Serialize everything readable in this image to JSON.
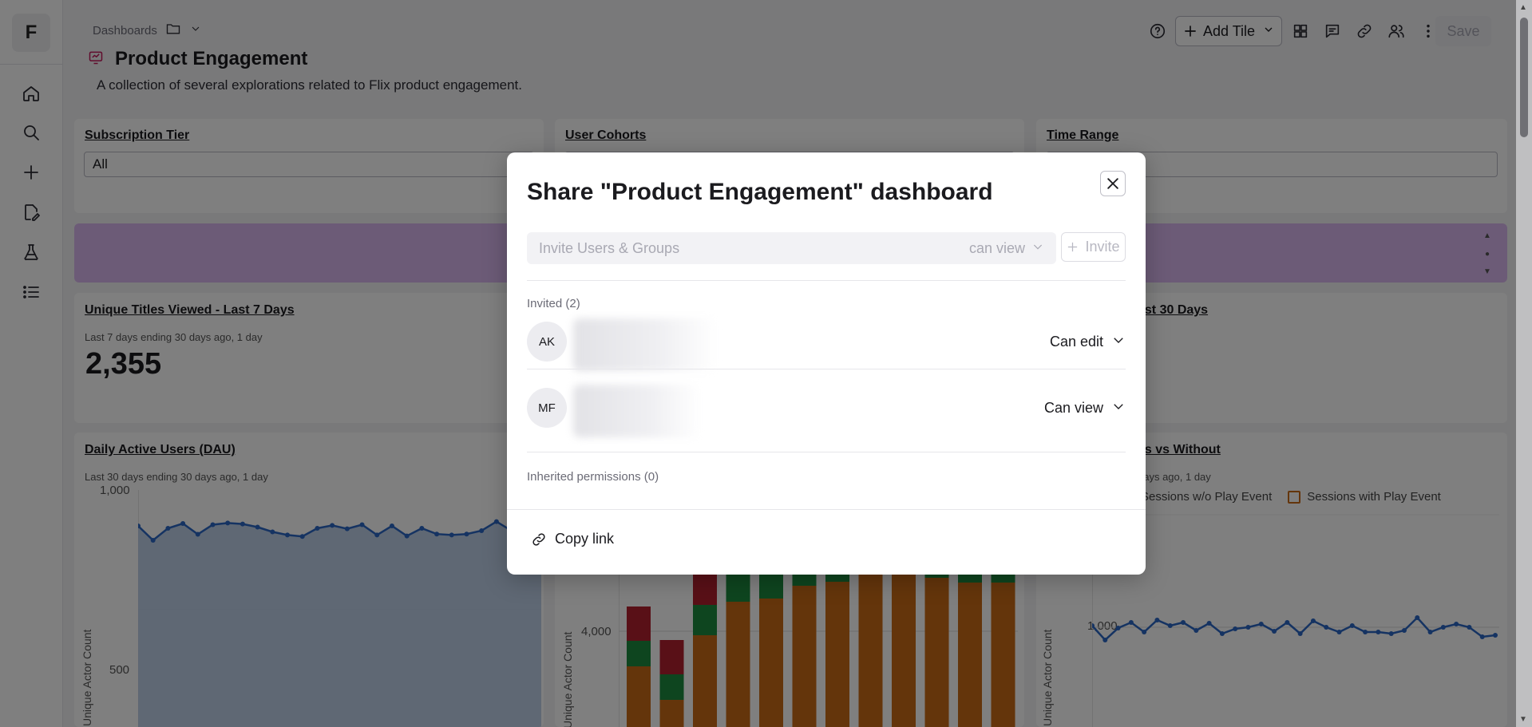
{
  "sidebar": {
    "logo": "F",
    "icons": [
      "home-icon",
      "search-icon",
      "plus-icon",
      "edit-document-icon",
      "flask-icon",
      "list-icon"
    ]
  },
  "header": {
    "breadcrumb": "Dashboards",
    "title": "Product Engagement",
    "description": "A collection of several explorations related to Flix product engagement."
  },
  "toolbar": {
    "add_tile": "Add Tile",
    "save": "Save"
  },
  "filters": [
    {
      "label": "Subscription Tier",
      "value": "All"
    },
    {
      "label": "User Cohorts",
      "value": ""
    },
    {
      "label": "Time Range",
      "value": ""
    }
  ],
  "tiles": {
    "unique_titles": {
      "title": "Unique Titles Viewed - Last 7 Days",
      "subtitle": "Last 7 days ending 30 days ago, 1 day",
      "value": "2,355"
    },
    "right_top": {
      "title": "ast 30 Days"
    },
    "dau": {
      "title": "Daily Active Users (DAU)",
      "subtitle": "Last 30 days ending 30 days ago, 1 day",
      "y_ticks": [
        "1,000",
        "500"
      ],
      "y_axis_title": "Unique Actor Count"
    },
    "middle": {
      "y_tick": "4,000",
      "y_axis_title": "Unique Actor Count"
    },
    "sessions": {
      "title": "ys vs Without",
      "subtitle": "days ago, 1 day",
      "legend_a": "Sessions w/o Play Event",
      "legend_b": "Sessions with Play Event",
      "y_tick": "1,000",
      "y_axis_title": "Unique Actor Count"
    }
  },
  "chart_data": [
    {
      "type": "area",
      "title": "Daily Active Users (DAU)",
      "ylabel": "Unique Actor Count",
      "ylim": [
        0,
        1000
      ],
      "values": [
        850,
        790,
        840,
        860,
        815,
        855,
        862,
        858,
        845,
        825,
        812,
        806,
        840,
        852,
        838,
        855,
        812,
        850,
        808,
        840,
        816,
        812,
        816,
        830,
        868,
        830,
        812,
        854
      ]
    },
    {
      "type": "bar",
      "ylabel": "Unique Actor Count",
      "colors": [
        "#c86a17",
        "#1d8a3e",
        "#b3212f"
      ]
    },
    {
      "type": "line",
      "title": "ys vs Without",
      "ylabel": "Unique Actor Count",
      "series": [
        {
          "name": "Sessions w/o Play Event"
        },
        {
          "name": "Sessions with Play Event"
        }
      ]
    }
  ],
  "modal": {
    "title": "Share \"Product Engagement\" dashboard",
    "invite_placeholder": "Invite Users & Groups",
    "permission": "can view",
    "invite_button": "Invite",
    "invited_label": "Invited (2)",
    "users": [
      {
        "initials": "AK",
        "role": "Can edit"
      },
      {
        "initials": "MF",
        "role": "Can view"
      }
    ],
    "inherited_label": "Inherited permissions (0)",
    "copy_link": "Copy link"
  }
}
